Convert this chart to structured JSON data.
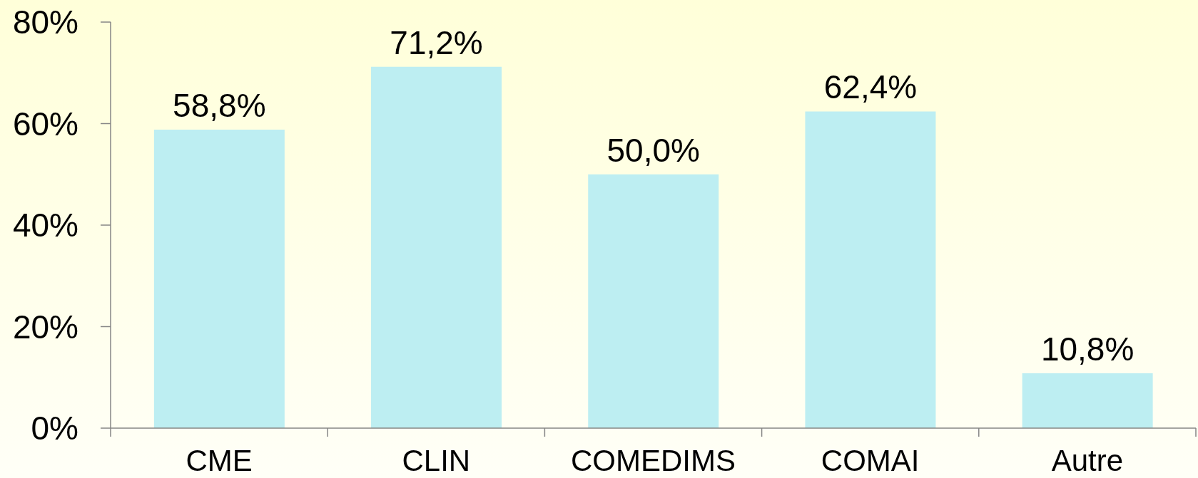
{
  "chart_data": {
    "type": "bar",
    "categories": [
      "CME",
      "CLIN",
      "COMEDIMS",
      "COMAI",
      "Autre"
    ],
    "values": [
      58.8,
      71.2,
      50.0,
      62.4,
      10.8
    ],
    "value_labels": [
      "58,8%",
      "71,2%",
      "50,0%",
      "62,4%",
      "10,8%"
    ],
    "color": "#bdeef2",
    "ylim": [
      0,
      80
    ],
    "yticks": [
      {
        "value": 0,
        "label": "0%"
      },
      {
        "value": 20,
        "label": "20%"
      },
      {
        "value": 40,
        "label": "40%"
      },
      {
        "value": 60,
        "label": "60%"
      },
      {
        "value": 80,
        "label": "80%"
      }
    ]
  }
}
